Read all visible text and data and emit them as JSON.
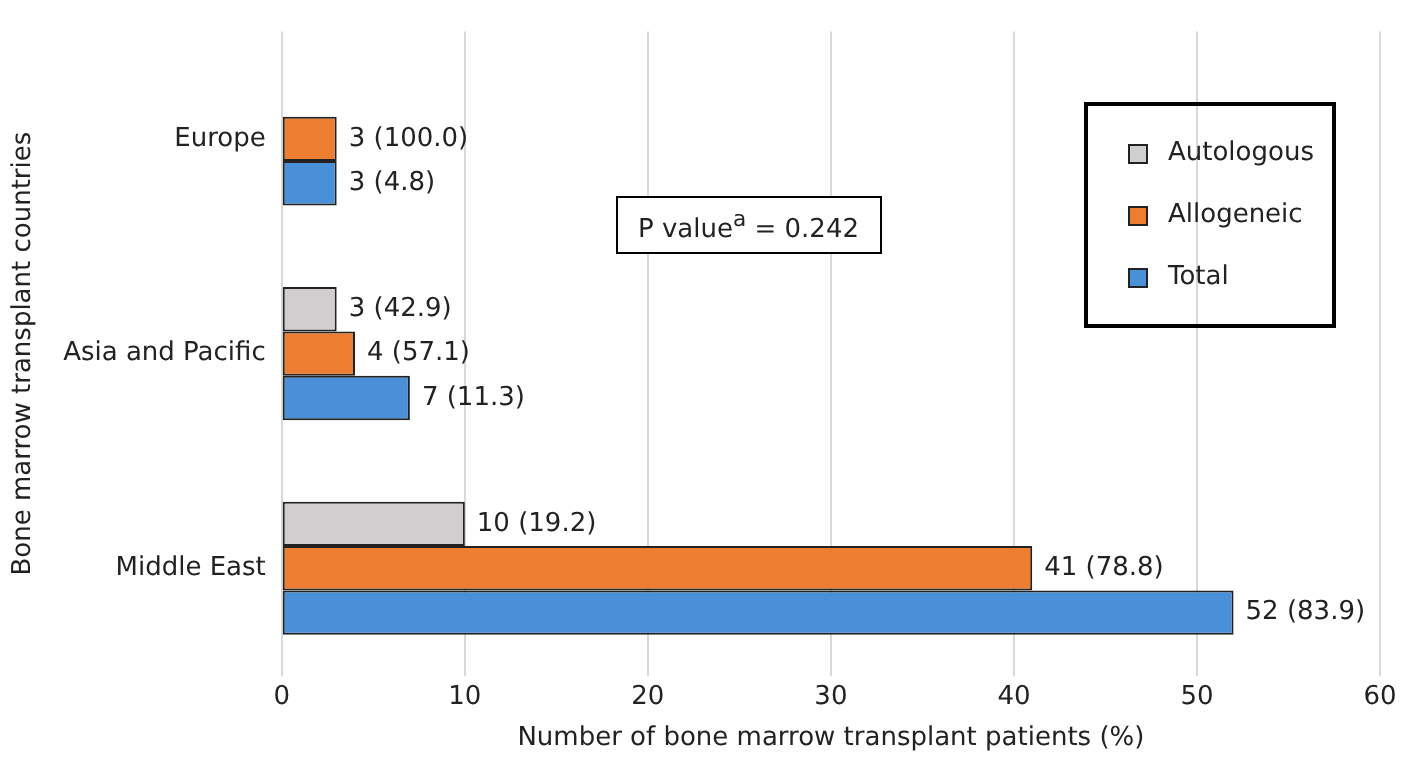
{
  "chart_data": {
    "type": "bar",
    "orientation": "horizontal",
    "xlabel": "Number of bone marrow transplant patients (%)",
    "ylabel": "Bone marrow transplant countries",
    "categories": [
      "Europe",
      "Asia and Pacific",
      "Middle East"
    ],
    "series": [
      {
        "name": "Autologous",
        "color": "#d0cece",
        "values": [
          null,
          3,
          10
        ],
        "value_labels": [
          null,
          "3 (42.9)",
          "10 (19.2)"
        ]
      },
      {
        "name": "Allogeneic",
        "color": "#ed7d31",
        "values": [
          3,
          4,
          41
        ],
        "value_labels": [
          "3 (100.0)",
          "4 (57.1)",
          "41 (78.8)"
        ]
      },
      {
        "name": "Total",
        "color": "#4a90d9",
        "values": [
          3,
          7,
          52
        ],
        "value_labels": [
          "3 (4.8)",
          "7 (11.3)",
          "52 (83.9)"
        ]
      }
    ],
    "xlim": [
      0,
      60
    ],
    "xticks": [
      0,
      10,
      20,
      30,
      40,
      50,
      60
    ],
    "grid": "x",
    "legend": "top right",
    "annotations": [
      "P value$^{a}$ = 0.242"
    ]
  }
}
